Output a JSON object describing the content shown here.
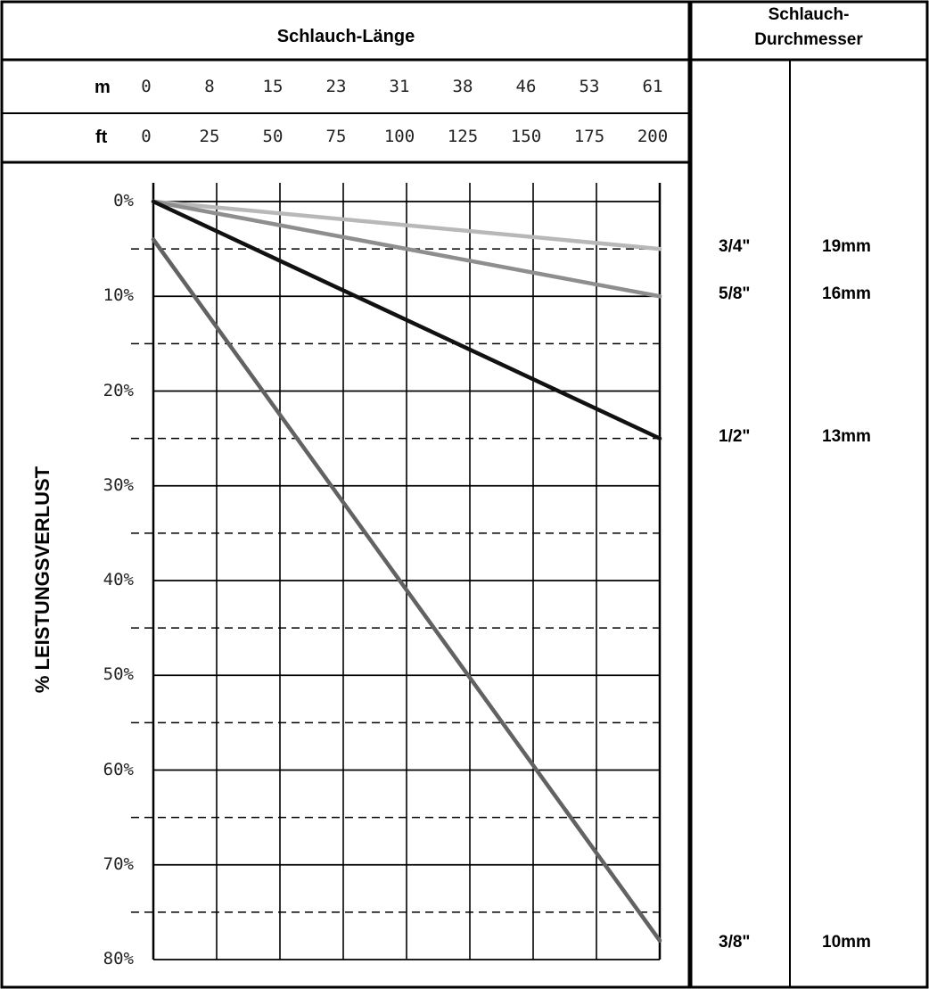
{
  "header": {
    "title": "Schlauch-Länge",
    "diameter_title_line1": "Schlauch-",
    "diameter_title_line2": "Durchmesser"
  },
  "length_scale": {
    "m_label": "m",
    "ft_label": "ft",
    "m_values": [
      "0",
      "8",
      "15",
      "23",
      "31",
      "38",
      "46",
      "53",
      "61"
    ],
    "ft_values": [
      "0",
      "25",
      "50",
      "75",
      "100",
      "125",
      "150",
      "175",
      "200"
    ]
  },
  "diameters": [
    {
      "inch": "3/4\"",
      "mm": "19mm"
    },
    {
      "inch": "5/8\"",
      "mm": "16mm"
    },
    {
      "inch": "1/2\"",
      "mm": "13mm"
    },
    {
      "inch": "3/8\"",
      "mm": "10mm"
    }
  ],
  "chart_data": {
    "type": "line",
    "ylabel": "% LEISTUNGSVERLUST",
    "x_unit": "ft",
    "xlim": [
      0,
      200
    ],
    "ylim": [
      0,
      80
    ],
    "y_inverted": true,
    "y_ticks": [
      "0%",
      "10%",
      "20%",
      "30%",
      "40%",
      "50%",
      "60%",
      "70%",
      "80%"
    ],
    "grid": true,
    "series": [
      {
        "x": [
          0,
          200
        ],
        "values": [
          0,
          5
        ],
        "color": "#b8b8b8"
      },
      {
        "x": [
          0,
          200
        ],
        "values": [
          0,
          10
        ],
        "color": "#8e8e8e"
      },
      {
        "x": [
          0,
          200
        ],
        "values": [
          0,
          25
        ],
        "color": "#111111"
      },
      {
        "x": [
          0,
          200
        ],
        "values": [
          4,
          78
        ],
        "color": "#626262"
      }
    ]
  }
}
